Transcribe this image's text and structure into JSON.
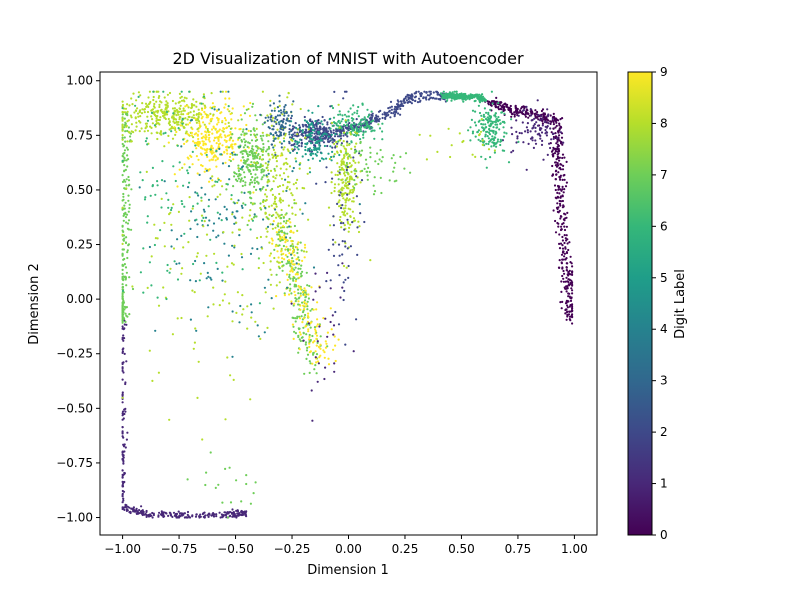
{
  "chart_data": {
    "type": "scatter",
    "title": "2D Visualization of MNIST with Autoencoder",
    "xlabel": "Dimension 1",
    "ylabel": "Dimension 2",
    "xlim": [
      -1.1,
      1.1
    ],
    "ylim": [
      -1.08,
      1.04
    ],
    "x_ticks": [
      -1.0,
      -0.75,
      -0.5,
      -0.25,
      0.0,
      0.25,
      0.5,
      0.75,
      1.0
    ],
    "y_ticks": [
      -1.0,
      -0.75,
      -0.5,
      -0.25,
      0.0,
      0.25,
      0.5,
      0.75,
      1.0
    ],
    "x_tick_labels": [
      "−1.00",
      "−0.75",
      "−0.50",
      "−0.25",
      "0.00",
      "0.25",
      "0.50",
      "0.75",
      "1.00"
    ],
    "y_tick_labels": [
      "−1.00",
      "−0.75",
      "−0.50",
      "−0.25",
      "0.00",
      "0.25",
      "0.50",
      "0.75",
      "1.00"
    ],
    "grid": false,
    "colormap": "viridis",
    "colorbar": {
      "label": "Digit Label",
      "range": [
        0,
        9
      ],
      "ticks": [
        0,
        1,
        2,
        3,
        4,
        5,
        6,
        7,
        8,
        9
      ],
      "tick_labels": [
        "0",
        "1",
        "2",
        "3",
        "4",
        "5",
        "6",
        "7",
        "8",
        "9"
      ]
    },
    "viridis_stops": [
      "#440154",
      "#482878",
      "#3e4989",
      "#31688e",
      "#26828e",
      "#1f9e89",
      "#35b779",
      "#6ece58",
      "#b5de2b",
      "#fde725"
    ],
    "clusters": [
      {
        "label": 1,
        "kind": "path",
        "path": [
          [
            -1.0,
            -0.1
          ],
          [
            -1.0,
            -0.6
          ],
          [
            -1.0,
            -0.95
          ],
          [
            -0.9,
            -0.985
          ],
          [
            -0.75,
            -0.99
          ],
          [
            -0.55,
            -0.99
          ],
          [
            -0.45,
            -0.98
          ]
        ],
        "n": 330,
        "spread": 0.008
      },
      {
        "label": 0,
        "kind": "path",
        "path": [
          [
            0.62,
            0.9
          ],
          [
            0.75,
            0.86
          ],
          [
            0.92,
            0.82
          ],
          [
            0.93,
            0.55
          ],
          [
            0.96,
            0.2
          ],
          [
            0.98,
            -0.1
          ]
        ],
        "n": 520,
        "spread": 0.014
      },
      {
        "label": 1,
        "kind": "blob",
        "center": [
          0.83,
          0.78
        ],
        "sx": 0.05,
        "sy": 0.05,
        "n": 90
      },
      {
        "label": 2,
        "kind": "path",
        "path": [
          [
            -0.05,
            0.77
          ],
          [
            0.07,
            0.8
          ],
          [
            0.2,
            0.86
          ],
          [
            0.28,
            0.93
          ],
          [
            0.45,
            0.93
          ]
        ],
        "n": 330,
        "spread": 0.012
      },
      {
        "label": 2,
        "kind": "blob",
        "center": [
          -0.14,
          0.76
        ],
        "sx": 0.06,
        "sy": 0.035,
        "n": 260
      },
      {
        "label": 6,
        "kind": "path",
        "path": [
          [
            0.42,
            0.93
          ],
          [
            0.5,
            0.93
          ],
          [
            0.6,
            0.92
          ]
        ],
        "n": 260,
        "spread": 0.008
      },
      {
        "label": 6,
        "kind": "blob",
        "center": [
          0.62,
          0.78
        ],
        "sx": 0.04,
        "sy": 0.06,
        "n": 160
      },
      {
        "label": 6,
        "kind": "blob",
        "center": [
          0.03,
          0.8
        ],
        "sx": 0.05,
        "sy": 0.04,
        "n": 140
      },
      {
        "label": 7,
        "kind": "path",
        "path": [
          [
            -0.99,
            0.85
          ],
          [
            -0.99,
            0.4
          ],
          [
            -1.0,
            0.0
          ],
          [
            -1.0,
            -0.1
          ]
        ],
        "n": 220,
        "spread": 0.012
      },
      {
        "label": 8,
        "kind": "blob",
        "center": [
          -0.8,
          0.84
        ],
        "sx": 0.12,
        "sy": 0.05,
        "n": 330
      },
      {
        "label": 9,
        "kind": "blob",
        "center": [
          -0.6,
          0.73
        ],
        "sx": 0.07,
        "sy": 0.08,
        "n": 260
      },
      {
        "label": 7,
        "kind": "blob",
        "center": [
          -0.43,
          0.62
        ],
        "sx": 0.04,
        "sy": 0.1,
        "n": 240
      },
      {
        "label": 8,
        "kind": "blob",
        "center": [
          -0.3,
          0.5
        ],
        "sx": 0.05,
        "sy": 0.2,
        "n": 220
      },
      {
        "label": 7,
        "kind": "path",
        "path": [
          [
            -0.3,
            0.4
          ],
          [
            -0.22,
            0.0
          ],
          [
            -0.15,
            -0.3
          ]
        ],
        "n": 200,
        "spread": 0.03
      },
      {
        "label": 9,
        "kind": "path",
        "path": [
          [
            -0.3,
            0.35
          ],
          [
            -0.2,
            0.0
          ],
          [
            -0.12,
            -0.3
          ]
        ],
        "n": 160,
        "spread": 0.035
      },
      {
        "label": 8,
        "kind": "blob",
        "center": [
          -0.01,
          0.55
        ],
        "sx": 0.03,
        "sy": 0.12,
        "n": 200
      },
      {
        "label": 5,
        "kind": "blob",
        "center": [
          -0.15,
          0.72
        ],
        "sx": 0.05,
        "sy": 0.06,
        "n": 120
      },
      {
        "label": 3,
        "kind": "blob",
        "center": [
          -0.3,
          0.8
        ],
        "sx": 0.03,
        "sy": 0.05,
        "n": 90
      },
      {
        "label": 4,
        "kind": "blob",
        "center": [
          -0.52,
          0.35
        ],
        "sx": 0.16,
        "sy": 0.25,
        "n": 140
      },
      {
        "label": 8,
        "kind": "blob",
        "center": [
          -0.62,
          0.15
        ],
        "sx": 0.2,
        "sy": 0.35,
        "n": 130
      },
      {
        "label": 6,
        "kind": "blob",
        "center": [
          -0.75,
          0.5
        ],
        "sx": 0.15,
        "sy": 0.25,
        "n": 110
      },
      {
        "label": 2,
        "kind": "blob",
        "center": [
          -0.02,
          0.45
        ],
        "sx": 0.04,
        "sy": 0.3,
        "n": 70
      },
      {
        "label": 7,
        "kind": "blob",
        "center": [
          0.1,
          0.62
        ],
        "sx": 0.08,
        "sy": 0.07,
        "n": 60
      },
      {
        "label": 1,
        "kind": "blob",
        "center": [
          -0.1,
          -0.2
        ],
        "sx": 0.05,
        "sy": 0.15,
        "n": 30
      },
      {
        "label": 7,
        "kind": "blob",
        "center": [
          -0.5,
          -0.85
        ],
        "sx": 0.1,
        "sy": 0.06,
        "n": 18
      },
      {
        "label": 8,
        "kind": "blob",
        "center": [
          0.5,
          0.7
        ],
        "sx": 0.1,
        "sy": 0.05,
        "n": 20
      }
    ]
  }
}
